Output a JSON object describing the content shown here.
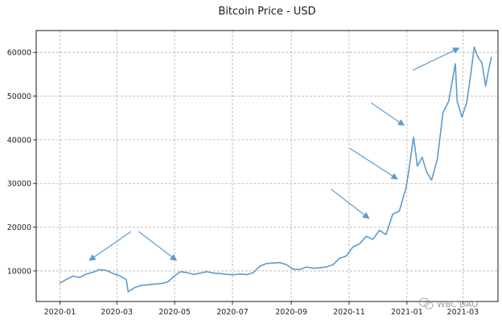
{
  "chart_data": {
    "type": "line",
    "title": "Bitcoin Price - USD",
    "xlabel": "",
    "ylabel": "",
    "grid": true,
    "x_ticks": [
      "2020-01",
      "2020-03",
      "2020-05",
      "2020-07",
      "2020-09",
      "2020-11",
      "2021-01",
      "2021-03"
    ],
    "y_ticks": [
      10000,
      20000,
      30000,
      40000,
      50000,
      60000
    ],
    "xlim": [
      "2019-12-07",
      "2021-04-07"
    ],
    "ylim": [
      3000,
      65000
    ],
    "series": [
      {
        "name": "",
        "color": "#5b9bd0",
        "points": [
          [
            "2020-01-01",
            7200
          ],
          [
            "2020-01-08",
            8100
          ],
          [
            "2020-01-15",
            8800
          ],
          [
            "2020-01-22",
            8500
          ],
          [
            "2020-01-29",
            9300
          ],
          [
            "2020-02-05",
            9700
          ],
          [
            "2020-02-12",
            10300
          ],
          [
            "2020-02-19",
            10100
          ],
          [
            "2020-02-26",
            9400
          ],
          [
            "2020-03-04",
            8900
          ],
          [
            "2020-03-11",
            8000
          ],
          [
            "2020-03-13",
            5200
          ],
          [
            "2020-03-20",
            6200
          ],
          [
            "2020-03-27",
            6700
          ],
          [
            "2020-04-03",
            6800
          ],
          [
            "2020-04-10",
            7000
          ],
          [
            "2020-04-17",
            7100
          ],
          [
            "2020-04-24",
            7500
          ],
          [
            "2020-04-30",
            8700
          ],
          [
            "2020-05-07",
            9800
          ],
          [
            "2020-05-14",
            9600
          ],
          [
            "2020-05-21",
            9200
          ],
          [
            "2020-05-28",
            9500
          ],
          [
            "2020-06-04",
            9800
          ],
          [
            "2020-06-11",
            9500
          ],
          [
            "2020-06-18",
            9400
          ],
          [
            "2020-06-25",
            9200
          ],
          [
            "2020-07-02",
            9100
          ],
          [
            "2020-07-09",
            9300
          ],
          [
            "2020-07-16",
            9150
          ],
          [
            "2020-07-23",
            9600
          ],
          [
            "2020-07-30",
            11100
          ],
          [
            "2020-08-06",
            11700
          ],
          [
            "2020-08-13",
            11800
          ],
          [
            "2020-08-20",
            11900
          ],
          [
            "2020-08-27",
            11400
          ],
          [
            "2020-09-03",
            10400
          ],
          [
            "2020-09-10",
            10300
          ],
          [
            "2020-09-17",
            10900
          ],
          [
            "2020-09-24",
            10600
          ],
          [
            "2020-10-01",
            10700
          ],
          [
            "2020-10-08",
            10900
          ],
          [
            "2020-10-15",
            11400
          ],
          [
            "2020-10-22",
            12900
          ],
          [
            "2020-10-29",
            13400
          ],
          [
            "2020-11-05",
            15500
          ],
          [
            "2020-11-12",
            16200
          ],
          [
            "2020-11-19",
            17900
          ],
          [
            "2020-11-26",
            17200
          ],
          [
            "2020-12-03",
            19300
          ],
          [
            "2020-12-10",
            18300
          ],
          [
            "2020-12-17",
            23000
          ],
          [
            "2020-12-24",
            23700
          ],
          [
            "2020-12-31",
            29000
          ],
          [
            "2021-01-03",
            33000
          ],
          [
            "2021-01-08",
            40600
          ],
          [
            "2021-01-12",
            34000
          ],
          [
            "2021-01-17",
            36000
          ],
          [
            "2021-01-22",
            32500
          ],
          [
            "2021-01-27",
            30800
          ],
          [
            "2021-02-02",
            35500
          ],
          [
            "2021-02-08",
            46200
          ],
          [
            "2021-02-14",
            48800
          ],
          [
            "2021-02-21",
            57400
          ],
          [
            "2021-02-23",
            48800
          ],
          [
            "2021-02-28",
            45200
          ],
          [
            "2021-03-05",
            48500
          ],
          [
            "2021-03-09",
            54500
          ],
          [
            "2021-03-13",
            61200
          ],
          [
            "2021-03-17",
            58900
          ],
          [
            "2021-03-21",
            57600
          ],
          [
            "2021-03-25",
            52300
          ],
          [
            "2021-03-28",
            55800
          ],
          [
            "2021-03-31",
            58900
          ]
        ]
      }
    ],
    "annotations": [
      {
        "type": "arrow",
        "from": [
          "2020-03-16",
          19000
        ],
        "to": [
          "2020-02-01",
          12400
        ]
      },
      {
        "type": "arrow",
        "from": [
          "2020-03-24",
          19000
        ],
        "to": [
          "2020-05-03",
          12400
        ]
      },
      {
        "type": "arrow",
        "from": [
          "2020-10-13",
          28700
        ],
        "to": [
          "2020-11-22",
          22000
        ]
      },
      {
        "type": "arrow",
        "from": [
          "2020-11-02",
          38000
        ],
        "to": [
          "2020-12-22",
          31000
        ]
      },
      {
        "type": "arrow",
        "from": [
          "2020-11-24",
          48500
        ],
        "to": [
          "2020-12-29",
          43300
        ]
      },
      {
        "type": "arrow",
        "from": [
          "2021-01-07",
          55900
        ],
        "to": [
          "2021-02-25",
          61000
        ]
      }
    ]
  },
  "watermark": {
    "text": "WBC DAO",
    "icon": "wechat-icon"
  }
}
